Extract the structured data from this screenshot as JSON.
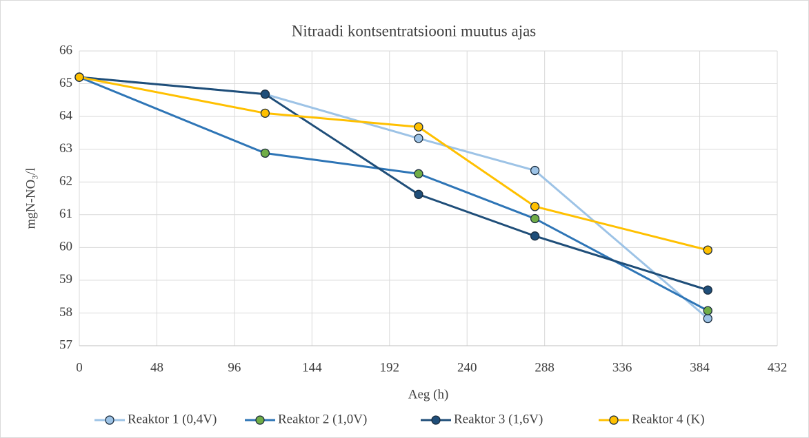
{
  "chart_data": {
    "type": "line",
    "title": "Nitraadi kontsentratsiooni muutus ajas",
    "x_label": "Aeg (h)",
    "y_label": "mgN-NO₃/l",
    "x": [
      0,
      115,
      210,
      282,
      389
    ],
    "xlim": [
      0,
      432
    ],
    "xticks": [
      0,
      48,
      96,
      144,
      192,
      240,
      288,
      336,
      384,
      432
    ],
    "ylim": [
      57,
      66
    ],
    "yticks": [
      57,
      58,
      59,
      60,
      61,
      62,
      63,
      64,
      65,
      66
    ],
    "grid": true,
    "legend": "bottom",
    "series": [
      {
        "name": "Reaktor 1 (0,4V)",
        "color": "#9dc3e6",
        "marker_color": "#9dc3e6",
        "values": [
          65.2,
          64.68,
          63.33,
          62.35,
          57.83
        ]
      },
      {
        "name": "Reaktor 2 (1,0V)",
        "color": "#2e75b6",
        "marker_color": "#70ad47",
        "values": [
          65.2,
          62.88,
          62.25,
          60.88,
          58.07
        ]
      },
      {
        "name": "Reaktor 3 (1,6V)",
        "color": "#1f4e79",
        "marker_color": "#1f4e79",
        "values": [
          65.2,
          64.68,
          61.62,
          60.35,
          58.7
        ]
      },
      {
        "name": "Reaktor 4 (K)",
        "color": "#ffc000",
        "marker_color": "#ffc000",
        "values": [
          65.2,
          64.1,
          63.68,
          61.25,
          59.92
        ]
      }
    ]
  }
}
